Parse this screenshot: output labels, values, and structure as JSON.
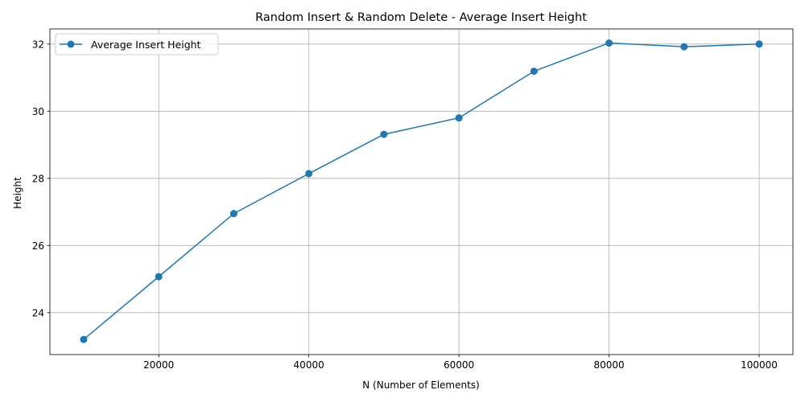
{
  "chart_data": {
    "type": "line",
    "title": "Random Insert & Random Delete - Average Insert Height",
    "xlabel": "N (Number of Elements)",
    "ylabel": "Height",
    "xlim": [
      5500,
      104500
    ],
    "ylim": [
      22.75,
      32.45
    ],
    "xticks": [
      20000,
      40000,
      60000,
      80000,
      100000
    ],
    "yticks": [
      24,
      26,
      28,
      30,
      32
    ],
    "grid": true,
    "legend_position": "top-left",
    "series": [
      {
        "name": "Average Insert Height",
        "color": "#1f77b4",
        "marker": "circle",
        "x": [
          10000,
          20000,
          30000,
          40000,
          50000,
          60000,
          70000,
          80000,
          90000,
          100000
        ],
        "y": [
          23.2,
          25.07,
          26.95,
          28.14,
          29.31,
          29.8,
          31.19,
          32.03,
          31.92,
          32.0
        ]
      }
    ]
  }
}
